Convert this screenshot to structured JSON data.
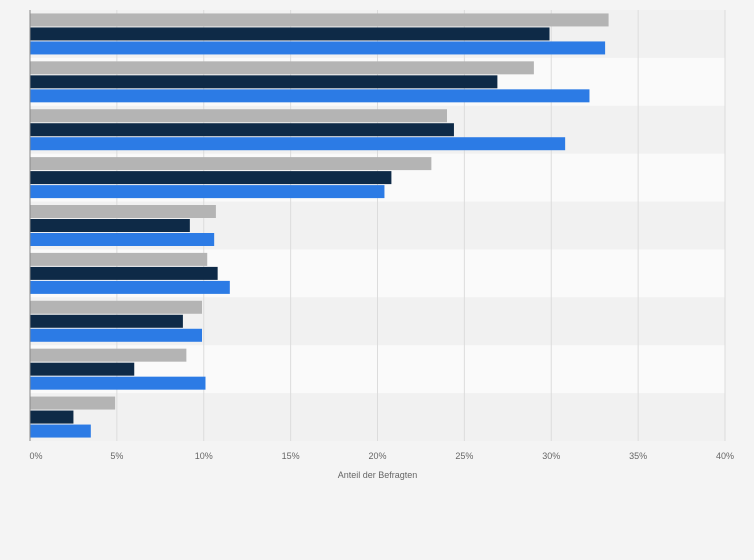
{
  "chart_data": {
    "type": "bar",
    "orientation": "horizontal",
    "xlabel": "Anteil der Befragten",
    "xlim": [
      0,
      40
    ],
    "x_ticks": [
      "0%",
      "5%",
      "10%",
      "15%",
      "20%",
      "25%",
      "30%",
      "35%",
      "40%"
    ],
    "grid": true,
    "category_count": 9,
    "series": [
      {
        "color": "#b4b4b4",
        "values": [
          33.3,
          29.0,
          24.0,
          23.1,
          10.7,
          10.2,
          9.9,
          9.0,
          4.9
        ]
      },
      {
        "color": "#0e2a47",
        "values": [
          29.9,
          26.9,
          24.4,
          20.8,
          9.2,
          10.8,
          8.8,
          6.0,
          2.5
        ]
      },
      {
        "color": "#2c7be5",
        "values": [
          33.1,
          32.2,
          30.8,
          20.4,
          10.6,
          11.5,
          9.9,
          10.1,
          3.5
        ]
      }
    ]
  }
}
